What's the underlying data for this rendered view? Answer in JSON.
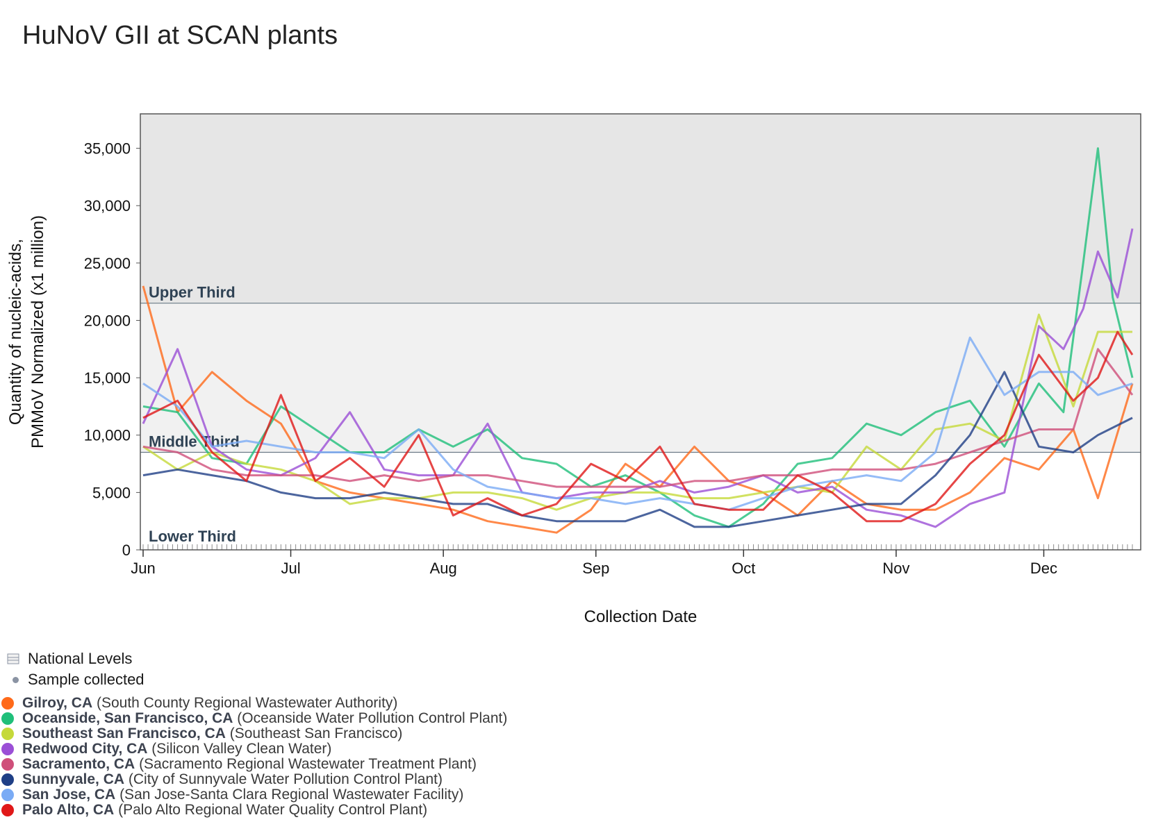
{
  "title": "HuNoV GII at SCAN plants",
  "legend": {
    "national_levels": "National Levels",
    "sample_collected": "Sample collected"
  },
  "plants": [
    {
      "city": "Gilroy, CA",
      "facility": "(South County Regional Wastewater Authority)",
      "color": "#ff6a1a"
    },
    {
      "city": "Oceanside, San Francisco, CA",
      "facility": "(Oceanside Water Pollution Control Plant)",
      "color": "#1fbf7a"
    },
    {
      "city": "Southeast San Francisco, CA",
      "facility": "(Southeast San Francisco)",
      "color": "#c5d93a"
    },
    {
      "city": "Redwood City, CA",
      "facility": "(Silicon Valley Clean Water)",
      "color": "#9b4fd6"
    },
    {
      "city": "Sacramento, CA",
      "facility": "(Sacramento Regional Wastewater Treatment Plant)",
      "color": "#cf4f7a"
    },
    {
      "city": "Sunnyvale, CA",
      "facility": "(City of Sunnyvale Water Pollution Control Plant)",
      "color": "#1f3f86"
    },
    {
      "city": "San Jose, CA",
      "facility": "(San Jose-Santa Clara Regional Wastewater Facility)",
      "color": "#7aabf5"
    },
    {
      "city": "Palo Alto, CA",
      "facility": "(Palo Alto Regional Water Quality Control Plant)",
      "color": "#e01818"
    }
  ],
  "chart_data": {
    "type": "line",
    "title": "HuNoV GII at SCAN plants",
    "xlabel": "Collection Date",
    "ylabel": "Quantity of nucleic-acids, PMMoV Normalized (x1 million)",
    "ylabel_lines": [
      "Quantity of nucleic-acids,",
      "PMMoV Normalized (x1 million)"
    ],
    "xlim": [
      "Jun 1",
      "Dec 19"
    ],
    "ylim": [
      0,
      38000
    ],
    "y_ticks": [
      0,
      5000,
      10000,
      15000,
      20000,
      25000,
      30000,
      35000
    ],
    "y_tick_labels": [
      "0",
      "5,000",
      "10,000",
      "15,000",
      "20,000",
      "25,000",
      "30,000",
      "35,000"
    ],
    "x_tick_labels": [
      "Jun",
      "Jul",
      "Aug",
      "Sep",
      "Oct",
      "Nov",
      "Dec"
    ],
    "bands": [
      {
        "label": "Upper Third",
        "from": 21500,
        "to": 38000,
        "color": "#e6e6e6"
      },
      {
        "label": "Middle Third",
        "from": 8500,
        "to": 21500,
        "color": "#f1f1f1"
      },
      {
        "label": "Lower Third",
        "from": 0,
        "to": 8500,
        "color": "#ffffff"
      }
    ],
    "grid": false,
    "legend_position": "bottom-left",
    "series": [
      {
        "name": "Gilroy, CA",
        "color": "#ff6a1a",
        "x": [
          "Jun 1",
          "Jun 8",
          "Jun 15",
          "Jun 22",
          "Jun 29",
          "Jul 6",
          "Jul 13",
          "Jul 20",
          "Jul 27",
          "Aug 3",
          "Aug 10",
          "Aug 17",
          "Aug 24",
          "Aug 31",
          "Sep 7",
          "Sep 14",
          "Sep 21",
          "Sep 28",
          "Oct 5",
          "Oct 12",
          "Oct 19",
          "Oct 26",
          "Nov 2",
          "Nov 9",
          "Nov 16",
          "Nov 23",
          "Nov 30",
          "Dec 7",
          "Dec 12",
          "Dec 19"
        ],
        "y": [
          23000,
          12000,
          15500,
          13000,
          11000,
          6000,
          5000,
          4500,
          4000,
          3500,
          2500,
          2000,
          1500,
          3500,
          7500,
          5500,
          9000,
          6000,
          5000,
          3000,
          6000,
          4000,
          3500,
          3500,
          5000,
          8000,
          7000,
          10500,
          4500,
          14500
        ]
      },
      {
        "name": "Oceanside, San Francisco, CA",
        "color": "#1fbf7a",
        "x": [
          "Jun 1",
          "Jun 8",
          "Jun 15",
          "Jun 22",
          "Jun 29",
          "Jul 6",
          "Jul 13",
          "Jul 20",
          "Jul 27",
          "Aug 3",
          "Aug 10",
          "Aug 17",
          "Aug 24",
          "Aug 31",
          "Sep 7",
          "Sep 14",
          "Sep 21",
          "Sep 28",
          "Oct 5",
          "Oct 12",
          "Oct 19",
          "Oct 26",
          "Nov 2",
          "Nov 9",
          "Nov 16",
          "Nov 23",
          "Nov 30",
          "Dec 5",
          "Dec 9",
          "Dec 12",
          "Dec 15",
          "Dec 19"
        ],
        "y": [
          12500,
          12000,
          8000,
          7500,
          12500,
          10500,
          8500,
          8500,
          10500,
          9000,
          10500,
          8000,
          7500,
          5500,
          6500,
          5000,
          3000,
          2000,
          4000,
          7500,
          8000,
          11000,
          10000,
          12000,
          13000,
          9000,
          14500,
          12000,
          25000,
          35000,
          22000,
          15000
        ]
      },
      {
        "name": "Southeast San Francisco, CA",
        "color": "#c5d93a",
        "x": [
          "Jun 1",
          "Jun 8",
          "Jun 15",
          "Jun 22",
          "Jun 29",
          "Jul 6",
          "Jul 13",
          "Jul 20",
          "Jul 27",
          "Aug 3",
          "Aug 10",
          "Aug 17",
          "Aug 24",
          "Aug 31",
          "Sep 7",
          "Sep 14",
          "Sep 21",
          "Sep 28",
          "Oct 5",
          "Oct 12",
          "Oct 19",
          "Oct 26",
          "Nov 2",
          "Nov 9",
          "Nov 16",
          "Nov 23",
          "Nov 30",
          "Dec 7",
          "Dec 12",
          "Dec 19"
        ],
        "y": [
          9000,
          7000,
          8500,
          7500,
          7000,
          6000,
          4000,
          4500,
          4500,
          5000,
          5000,
          4500,
          3500,
          4500,
          5000,
          5000,
          4500,
          4500,
          5000,
          5500,
          5000,
          9000,
          7000,
          10500,
          11000,
          9500,
          20500,
          12500,
          19000,
          19000
        ]
      },
      {
        "name": "Redwood City, CA",
        "color": "#9b4fd6",
        "x": [
          "Jun 1",
          "Jun 8",
          "Jun 15",
          "Jun 22",
          "Jun 29",
          "Jul 6",
          "Jul 13",
          "Jul 20",
          "Jul 27",
          "Aug 3",
          "Aug 10",
          "Aug 17",
          "Aug 24",
          "Aug 31",
          "Sep 7",
          "Sep 14",
          "Sep 21",
          "Sep 28",
          "Oct 5",
          "Oct 12",
          "Oct 19",
          "Oct 26",
          "Nov 2",
          "Nov 9",
          "Nov 16",
          "Nov 23",
          "Nov 30",
          "Dec 5",
          "Dec 9",
          "Dec 12",
          "Dec 16",
          "Dec 19"
        ],
        "y": [
          11000,
          17500,
          9000,
          7000,
          6500,
          8000,
          12000,
          7000,
          6500,
          6500,
          11000,
          5000,
          4500,
          5000,
          5000,
          6000,
          5000,
          5500,
          6500,
          5000,
          5500,
          3500,
          3000,
          2000,
          4000,
          5000,
          19500,
          17500,
          21000,
          26000,
          22000,
          28000
        ]
      },
      {
        "name": "Sacramento, CA",
        "color": "#cf4f7a",
        "x": [
          "Jun 1",
          "Jun 8",
          "Jun 15",
          "Jun 22",
          "Jun 29",
          "Jul 6",
          "Jul 13",
          "Jul 20",
          "Jul 27",
          "Aug 3",
          "Aug 10",
          "Aug 17",
          "Aug 24",
          "Aug 31",
          "Sep 7",
          "Sep 14",
          "Sep 21",
          "Sep 28",
          "Oct 5",
          "Oct 12",
          "Oct 19",
          "Oct 26",
          "Nov 2",
          "Nov 9",
          "Nov 16",
          "Nov 23",
          "Nov 30",
          "Dec 7",
          "Dec 12",
          "Dec 19"
        ],
        "y": [
          9000,
          8500,
          7000,
          6500,
          6500,
          6500,
          6000,
          6500,
          6000,
          6500,
          6500,
          6000,
          5500,
          5500,
          5500,
          5500,
          6000,
          6000,
          6500,
          6500,
          7000,
          7000,
          7000,
          7500,
          8500,
          9500,
          10500,
          10500,
          17500,
          13500
        ]
      },
      {
        "name": "Sunnyvale, CA",
        "color": "#1f3f86",
        "x": [
          "Jun 1",
          "Jun 8",
          "Jun 15",
          "Jun 22",
          "Jun 29",
          "Jul 6",
          "Jul 13",
          "Jul 20",
          "Jul 27",
          "Aug 3",
          "Aug 10",
          "Aug 17",
          "Aug 24",
          "Aug 31",
          "Sep 7",
          "Sep 14",
          "Sep 21",
          "Sep 28",
          "Oct 5",
          "Oct 12",
          "Oct 19",
          "Oct 26",
          "Nov 2",
          "Nov 9",
          "Nov 16",
          "Nov 23",
          "Nov 30",
          "Dec 7",
          "Dec 12",
          "Dec 19"
        ],
        "y": [
          6500,
          7000,
          6500,
          6000,
          5000,
          4500,
          4500,
          5000,
          4500,
          4000,
          4000,
          3000,
          2500,
          2500,
          2500,
          3500,
          2000,
          2000,
          2500,
          3000,
          3500,
          4000,
          4000,
          6500,
          10000,
          15500,
          9000,
          8500,
          10000,
          11500
        ]
      },
      {
        "name": "San Jose, CA",
        "color": "#7aabf5",
        "x": [
          "Jun 1",
          "Jun 8",
          "Jun 15",
          "Jun 22",
          "Jun 29",
          "Jul 6",
          "Jul 13",
          "Jul 20",
          "Jul 27",
          "Aug 3",
          "Aug 10",
          "Aug 17",
          "Aug 24",
          "Aug 31",
          "Sep 7",
          "Sep 14",
          "Sep 21",
          "Sep 28",
          "Oct 5",
          "Oct 12",
          "Oct 19",
          "Oct 26",
          "Nov 2",
          "Nov 9",
          "Nov 16",
          "Nov 23",
          "Nov 30",
          "Dec 7",
          "Dec 12",
          "Dec 19"
        ],
        "y": [
          14500,
          12500,
          9000,
          9500,
          9000,
          8500,
          8500,
          8000,
          10500,
          7000,
          5500,
          5000,
          4500,
          4500,
          4000,
          4500,
          4000,
          3500,
          4500,
          5500,
          6000,
          6500,
          6000,
          8500,
          18500,
          13500,
          15500,
          15500,
          13500,
          14500
        ]
      },
      {
        "name": "Palo Alto, CA",
        "color": "#e01818",
        "x": [
          "Jun 1",
          "Jun 8",
          "Jun 15",
          "Jun 22",
          "Jun 29",
          "Jul 6",
          "Jul 13",
          "Jul 20",
          "Jul 27",
          "Aug 3",
          "Aug 10",
          "Aug 17",
          "Aug 24",
          "Aug 31",
          "Sep 7",
          "Sep 14",
          "Sep 21",
          "Sep 28",
          "Oct 5",
          "Oct 12",
          "Oct 19",
          "Oct 26",
          "Nov 2",
          "Nov 9",
          "Nov 16",
          "Nov 23",
          "Nov 30",
          "Dec 7",
          "Dec 12",
          "Dec 16",
          "Dec 19"
        ],
        "y": [
          11500,
          13000,
          8500,
          6000,
          13500,
          6000,
          8000,
          5500,
          10000,
          3000,
          4500,
          3000,
          4000,
          7500,
          6000,
          9000,
          4000,
          3500,
          3500,
          6500,
          5000,
          2500,
          2500,
          4000,
          7500,
          10000,
          17000,
          13000,
          15000,
          19000,
          17000
        ]
      }
    ]
  }
}
